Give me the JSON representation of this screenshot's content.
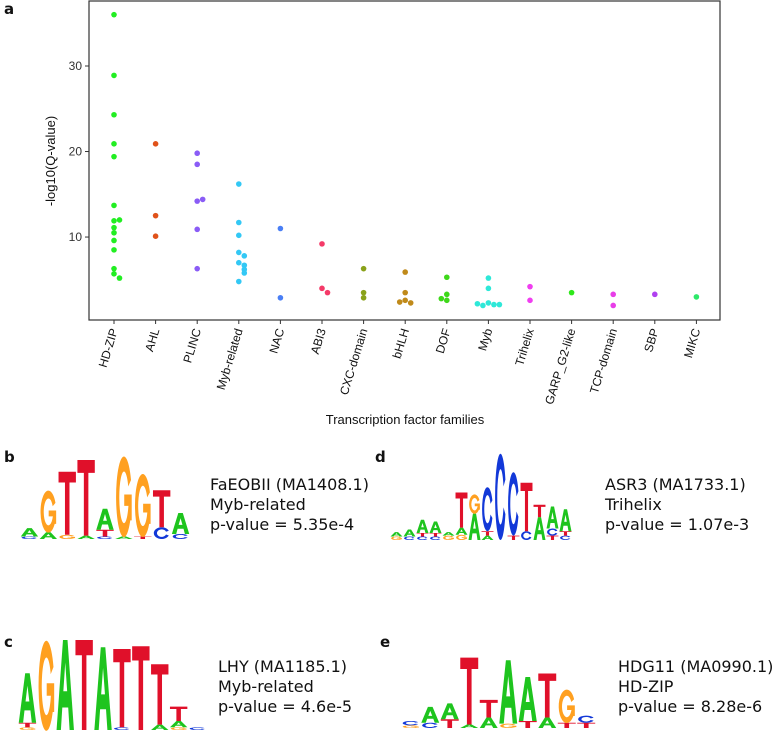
{
  "panels": {
    "a": "a",
    "b": "b",
    "c": "c",
    "d": "d",
    "e": "e"
  },
  "chart_data": {
    "type": "scatter",
    "xlabel": "Transcription factor families",
    "ylabel": "-log10(Q-value)",
    "ylim": [
      0.3,
      37.6
    ],
    "yticks": [
      10,
      20,
      30
    ],
    "grid": false,
    "legend": "none",
    "categories": [
      "HD-ZIP",
      "AHL",
      "PLINC",
      "Myb-related",
      "NAC",
      "ABI3",
      "CXC-domain",
      "bHLH",
      "DOF",
      "Myb",
      "Trihelix",
      "GARP_G2-like",
      "TCP-domain",
      "SBP",
      "MIKC"
    ],
    "series": [
      {
        "category": "HD-ZIP",
        "color": "#22ee22",
        "values": [
          36.0,
          28.9,
          24.3,
          20.9,
          19.4,
          13.7,
          11.9,
          12.0,
          11.1,
          10.5,
          9.6,
          8.5,
          6.3,
          5.7,
          5.2
        ]
      },
      {
        "category": "AHL",
        "color": "#e0521a",
        "values": [
          20.9,
          12.5,
          10.1
        ]
      },
      {
        "category": "PLINC",
        "color": "#8a5cf6",
        "values": [
          19.8,
          18.5,
          14.2,
          14.4,
          10.9,
          6.3
        ]
      },
      {
        "category": "Myb-related",
        "color": "#33c8f5",
        "values": [
          16.2,
          11.7,
          10.2,
          8.2,
          7.8,
          7.0,
          6.7,
          6.2,
          5.8,
          4.8
        ]
      },
      {
        "category": "NAC",
        "color": "#4a7ff5",
        "values": [
          11.0,
          2.9
        ]
      },
      {
        "category": "ABI3",
        "color": "#f43a68",
        "values": [
          9.2,
          4.0,
          3.5
        ]
      },
      {
        "category": "CXC-domain",
        "color": "#8aa21a",
        "values": [
          6.3,
          3.5,
          2.9
        ]
      },
      {
        "category": "bHLH",
        "color": "#c08a1a",
        "values": [
          5.9,
          3.5,
          2.6,
          2.3,
          2.4
        ]
      },
      {
        "category": "DOF",
        "color": "#3ed81a",
        "values": [
          5.3,
          3.3,
          2.6,
          2.8
        ]
      },
      {
        "category": "Myb",
        "color": "#2ee8d8",
        "values": [
          5.2,
          4.0,
          2.3,
          2.1,
          2.0,
          2.1,
          2.2
        ]
      },
      {
        "category": "Trihelix",
        "color": "#f03ef0",
        "values": [
          4.2,
          2.6
        ]
      },
      {
        "category": "GARP_G2-like",
        "color": "#2ee81a",
        "values": [
          3.5
        ]
      },
      {
        "category": "TCP-domain",
        "color": "#e83ee8",
        "values": [
          3.3,
          2.0
        ]
      },
      {
        "category": "SBP",
        "color": "#b040f0",
        "values": [
          3.3
        ]
      },
      {
        "category": "MIKC",
        "color": "#2ee86a",
        "values": [
          3.0
        ]
      }
    ]
  },
  "letter_colors": {
    "A": "#1ec41e",
    "C": "#1238d8",
    "G": "#ffa020",
    "T": "#e0102a"
  },
  "motifs": {
    "b": {
      "name": "FaEOBII (MA1408.1)",
      "family": "Myb-related",
      "pvalue": "p-value = 5.35e-4",
      "logo": [
        [
          [
            "C",
            0.03
          ],
          [
            "A",
            0.1
          ]
        ],
        [
          [
            "A",
            0.08
          ],
          [
            "G",
            0.5
          ]
        ],
        [
          [
            "G",
            0.05
          ],
          [
            "T",
            0.75
          ]
        ],
        [
          [
            "A",
            0.04
          ],
          [
            "T",
            0.9
          ]
        ],
        [
          [
            "C",
            0.03
          ],
          [
            "T",
            0.08
          ],
          [
            "A",
            0.25
          ]
        ],
        [
          [
            "A",
            0.03
          ],
          [
            "G",
            0.96
          ]
        ],
        [
          [
            "T",
            0.03
          ],
          [
            "G",
            0.75
          ]
        ],
        [
          [
            "C",
            0.14
          ],
          [
            "T",
            0.44
          ]
        ],
        [
          [
            "C",
            0.06
          ],
          [
            "A",
            0.25
          ]
        ]
      ]
    },
    "d": {
      "name": "ASR3 (MA1733.1)",
      "family": "Trihelix",
      "pvalue": "p-value = 1.07e-3",
      "logo": [
        [
          [
            "G",
            0.04
          ],
          [
            "A",
            0.05
          ]
        ],
        [
          [
            "C",
            0.04
          ],
          [
            "A",
            0.08
          ]
        ],
        [
          [
            "C",
            0.04
          ],
          [
            "T",
            0.04
          ],
          [
            "A",
            0.15
          ]
        ],
        [
          [
            "C",
            0.04
          ],
          [
            "T",
            0.04
          ],
          [
            "A",
            0.13
          ]
        ],
        [
          [
            "G",
            0.05
          ],
          [
            "A",
            0.04
          ]
        ],
        [
          [
            "G",
            0.06
          ],
          [
            "A",
            0.08
          ],
          [
            "T",
            0.4
          ]
        ],
        [
          [
            "A",
            0.3
          ],
          [
            "G",
            0.22
          ]
        ],
        [
          [
            "A",
            0.05
          ],
          [
            "T",
            0.05
          ],
          [
            "C",
            0.5
          ]
        ],
        [
          [
            "C",
            0.98
          ]
        ],
        [
          [
            "T",
            0.05
          ],
          [
            "C",
            0.72
          ]
        ],
        [
          [
            "C",
            0.1
          ],
          [
            "T",
            0.55
          ]
        ],
        [
          [
            "A",
            0.26
          ],
          [
            "T",
            0.14
          ]
        ],
        [
          [
            "T",
            0.05
          ],
          [
            "C",
            0.08
          ],
          [
            "A",
            0.25
          ]
        ],
        [
          [
            "C",
            0.05
          ],
          [
            "T",
            0.05
          ],
          [
            "A",
            0.25
          ]
        ]
      ]
    },
    "c": {
      "name": "LHY (MA1185.1)",
      "family": "Myb-related",
      "pvalue": "p-value =  4.6e-5",
      "logo": [
        [
          [
            "G",
            0.03
          ],
          [
            "T",
            0.05
          ],
          [
            "A",
            0.55
          ]
        ],
        [
          [
            "G",
            1.0
          ]
        ],
        [
          [
            "A",
            1.0
          ]
        ],
        [
          [
            "T",
            1.0
          ]
        ],
        [
          [
            "A",
            0.92
          ]
        ],
        [
          [
            "C",
            0.03
          ],
          [
            "T",
            0.87
          ]
        ],
        [
          [
            "T",
            0.93
          ]
        ],
        [
          [
            "A",
            0.06
          ],
          [
            "T",
            0.67
          ]
        ],
        [
          [
            "G",
            0.03
          ],
          [
            "A",
            0.07
          ],
          [
            "T",
            0.16
          ]
        ],
        [
          [
            "C",
            0.03
          ]
        ]
      ]
    },
    "e": {
      "name": "HDG11 (MA0990.1)",
      "family": "HD-ZIP",
      "pvalue": "p-value = 8.28e-6",
      "logo": [
        [
          [
            "G",
            0.03
          ],
          [
            "C",
            0.05
          ]
        ],
        [
          [
            "C",
            0.06
          ],
          [
            "A",
            0.18
          ]
        ],
        [
          [
            "T",
            0.1
          ],
          [
            "A",
            0.18
          ]
        ],
        [
          [
            "A",
            0.04
          ],
          [
            "T",
            0.76
          ]
        ],
        [
          [
            "A",
            0.12
          ],
          [
            "T",
            0.2
          ]
        ],
        [
          [
            "G",
            0.05
          ],
          [
            "A",
            0.72
          ]
        ],
        [
          [
            "T",
            0.08
          ],
          [
            "A",
            0.5
          ]
        ],
        [
          [
            "A",
            0.12
          ],
          [
            "T",
            0.5
          ]
        ],
        [
          [
            "T",
            0.06
          ],
          [
            "G",
            0.38
          ]
        ],
        [
          [
            "T",
            0.06
          ],
          [
            "C",
            0.08
          ]
        ]
      ]
    }
  }
}
